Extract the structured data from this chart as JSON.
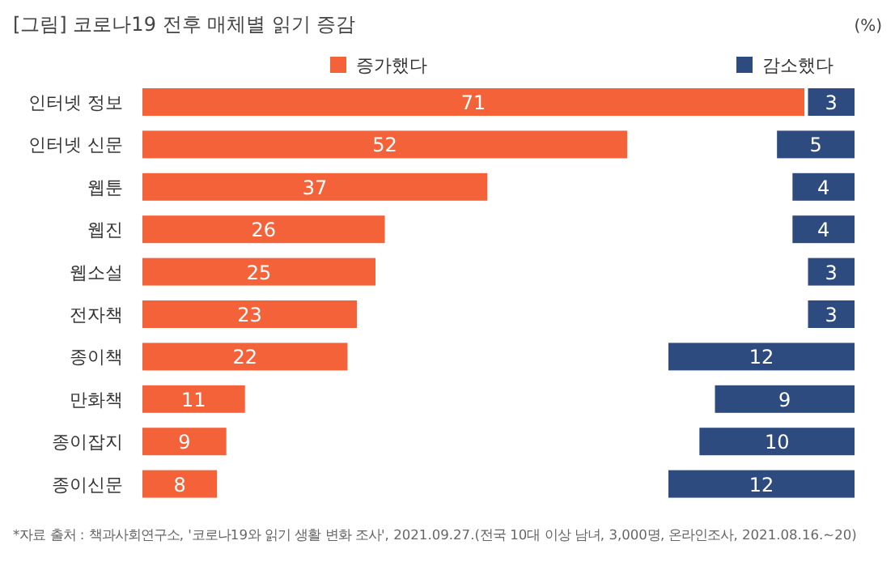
{
  "chart_data": [
    {
      "type": "bar",
      "orientation": "horizontal",
      "title": "[그림] 코로나19 전후 매체별 읽기 증감",
      "annotations": [
        "(%)",
        "*자료 출처 : 책과사회연구소, '코로나19와 읽기 생활 변화 조사', 2021.09.27.(전국 10대 이상 남녀, 3,000명, 온라인조사, 2021.08.16.~20)"
      ],
      "categories": [
        "인터넷 정보",
        "인터넷 신문",
        "웹툰",
        "웹진",
        "웹소설",
        "전자책",
        "종이책",
        "만화책",
        "종이잡지",
        "종이신문"
      ],
      "series": [
        {
          "name": "증가했다",
          "color": "#f4623a",
          "values": [
            71,
            52,
            37,
            26,
            25,
            23,
            22,
            11,
            9,
            8
          ]
        }
      ],
      "data_labels": true,
      "legend": "top"
    },
    {
      "type": "bar",
      "orientation": "horizontal",
      "categories": [
        null,
        null,
        null,
        null,
        null,
        null,
        null,
        null,
        null,
        null
      ],
      "series": [
        {
          "name": "감소했다",
          "color": "#2e4b7f",
          "values": [
            3,
            5,
            4,
            4,
            3,
            3,
            12,
            9,
            10,
            12
          ]
        }
      ],
      "data_labels": true,
      "legend": "top"
    }
  ]
}
